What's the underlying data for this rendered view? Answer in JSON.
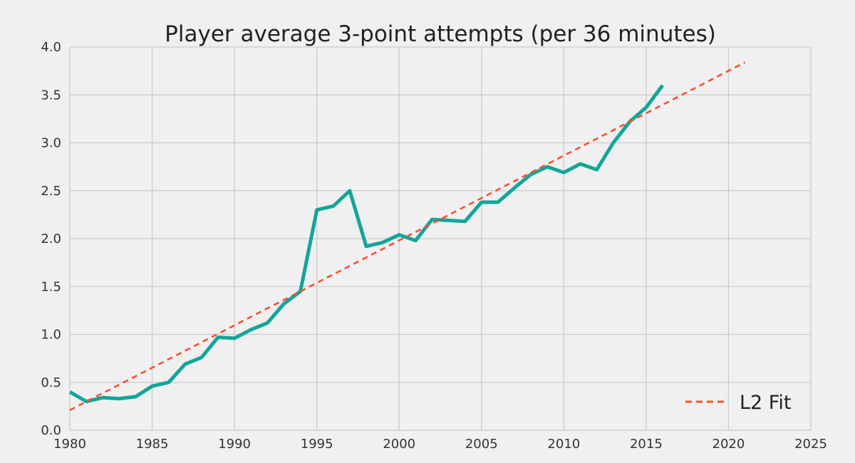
{
  "chart_data": {
    "type": "line",
    "title": "Player average 3-point attempts (per 36 minutes)",
    "xlabel": "",
    "ylabel": "",
    "xlim": [
      1980,
      2025
    ],
    "ylim": [
      0.0,
      4.0
    ],
    "x_ticks": [
      "1980",
      "1985",
      "1990",
      "1995",
      "2000",
      "2005",
      "2010",
      "2015",
      "2020",
      "2025"
    ],
    "y_ticks": [
      "0.0",
      "0.5",
      "1.0",
      "1.5",
      "2.0",
      "2.5",
      "3.0",
      "3.5",
      "4.0"
    ],
    "grid": true,
    "legend_position": "bottom-right",
    "background_color": "#f0f0f0",
    "grid_color": "#cbcbcb",
    "series": [
      {
        "style": "solid",
        "color": "#12a59a",
        "x": [
          1980,
          1981,
          1982,
          1983,
          1984,
          1985,
          1986,
          1987,
          1988,
          1989,
          1990,
          1991,
          1992,
          1993,
          1994,
          1995,
          1996,
          1997,
          1998,
          1999,
          2000,
          2001,
          2002,
          2003,
          2004,
          2005,
          2006,
          2007,
          2008,
          2009,
          2010,
          2011,
          2012,
          2013,
          2014,
          2015,
          2016
        ],
        "y": [
          0.4,
          0.3,
          0.34,
          0.33,
          0.35,
          0.46,
          0.5,
          0.69,
          0.76,
          0.97,
          0.96,
          1.05,
          1.12,
          1.32,
          1.45,
          2.3,
          2.34,
          2.5,
          1.92,
          1.96,
          2.04,
          1.98,
          2.2,
          2.19,
          2.18,
          2.38,
          2.38,
          2.53,
          2.67,
          2.75,
          2.69,
          2.78,
          2.72,
          3.0,
          3.22,
          3.37,
          3.6
        ]
      },
      {
        "name": "L2 Fit",
        "style": "dashed",
        "color": "#fc4f30",
        "x": [
          1980,
          2021
        ],
        "y": [
          0.21,
          3.84
        ]
      }
    ]
  }
}
